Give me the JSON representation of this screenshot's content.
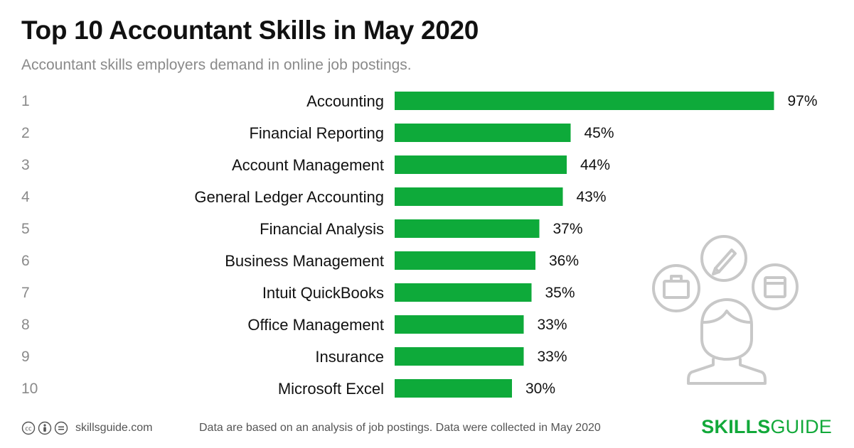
{
  "header": {
    "title": "Top 10 Accountant Skills in May 2020",
    "subtitle": "Accountant skills employers demand in online job postings."
  },
  "chart_data": {
    "type": "bar",
    "orientation": "horizontal",
    "title": "Top 10 Accountant Skills in May 2020",
    "subtitle": "Accountant skills employers demand in online job postings.",
    "ranks": [
      "1",
      "2",
      "3",
      "4",
      "5",
      "6",
      "7",
      "8",
      "9",
      "10"
    ],
    "categories": [
      "Accounting",
      "Financial Reporting",
      "Account Management",
      "General Ledger Accounting",
      "Financial Analysis",
      "Business Management",
      "Intuit QuickBooks",
      "Office Management",
      "Insurance",
      "Microsoft Excel"
    ],
    "values": [
      97,
      45,
      44,
      43,
      37,
      36,
      35,
      33,
      33,
      30
    ],
    "value_labels": [
      "97%",
      "45%",
      "44%",
      "43%",
      "37%",
      "36%",
      "35%",
      "33%",
      "33%",
      "30%"
    ],
    "xlim": [
      0,
      100
    ],
    "grid": false,
    "legend": "none",
    "bar_color": "#0eaa3a"
  },
  "footer": {
    "site": "skillsguide.com",
    "note": "Data are based on an analysis of job postings. Data were collected in May 2020",
    "brand_bold": "SKILLS",
    "brand_light": "GUIDE",
    "license_icons": [
      "cc-icon",
      "by-icon",
      "nd-icon"
    ]
  },
  "colors": {
    "accent": "#0eaa3a",
    "title": "#111111",
    "muted": "#8a8a8a",
    "illustration": "#c8c8c8"
  }
}
